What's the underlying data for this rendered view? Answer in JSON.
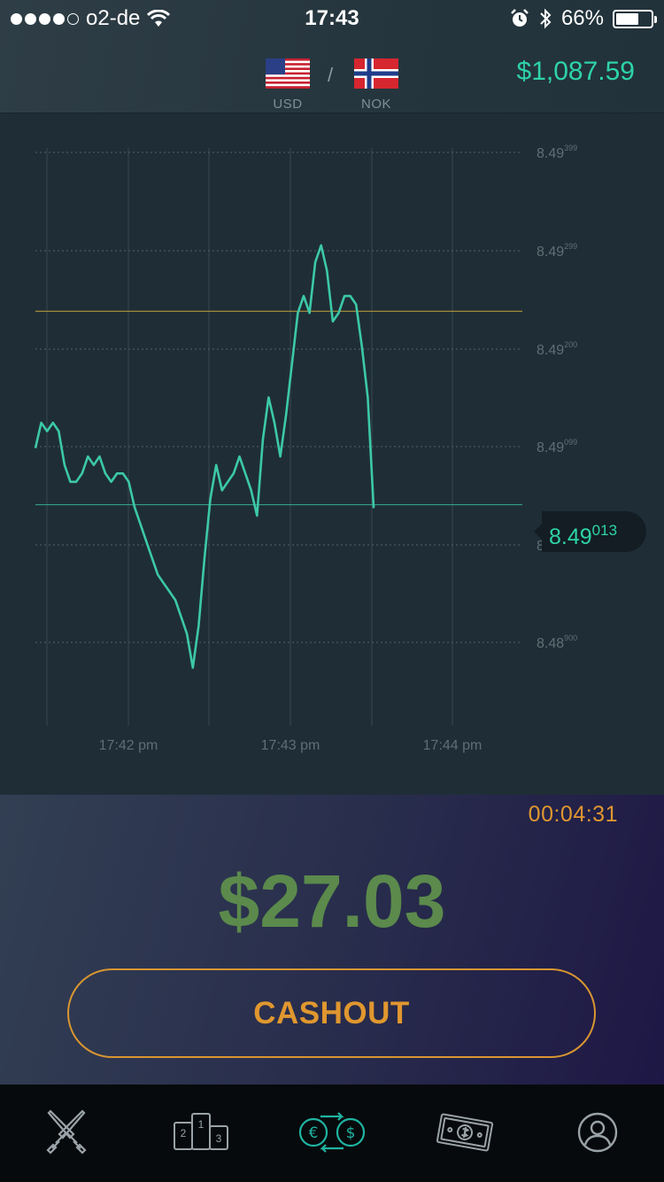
{
  "status_bar": {
    "carrier": "o2-de",
    "time": "17:43",
    "battery_pct": "66%",
    "battery_level": 0.66,
    "signal_bars": 4
  },
  "pair": {
    "base": "USD",
    "separator": "/",
    "quote": "NOK"
  },
  "balance": "$1,087.59",
  "chart": {
    "y_ticks": [
      {
        "main": "8.49",
        "sup": "399"
      },
      {
        "main": "8.49",
        "sup": "299"
      },
      {
        "main": "8.49",
        "sup": "200"
      },
      {
        "main": "8.49",
        "sup": "099"
      },
      {
        "main": "8.49",
        "sup": ""
      },
      {
        "main": "8.48",
        "sup": "900"
      }
    ],
    "x_ticks": [
      "17:42 pm",
      "17:43 pm",
      "17:44 pm"
    ],
    "current_price": {
      "main": "8.49",
      "sup": "013"
    },
    "line_color": "#3cc9a8",
    "entry_line_color": "#c9a13a"
  },
  "chart_data": {
    "type": "line",
    "y_range": [
      8.4885,
      8.4943
    ],
    "entry_level": 8.49242,
    "current_level": 8.49013,
    "points": [
      [
        0,
        8.4908
      ],
      [
        1,
        8.4911
      ],
      [
        2,
        8.491
      ],
      [
        3,
        8.4911
      ],
      [
        4,
        8.491
      ],
      [
        5,
        8.4906
      ],
      [
        6,
        8.4904
      ],
      [
        7,
        8.4904
      ],
      [
        8,
        8.4905
      ],
      [
        9,
        8.4907
      ],
      [
        10,
        8.4906
      ],
      [
        11,
        8.4907
      ],
      [
        12,
        8.4905
      ],
      [
        13,
        8.4904
      ],
      [
        14,
        8.4905
      ],
      [
        15,
        8.4905
      ],
      [
        16,
        8.4904
      ],
      [
        17,
        8.4901
      ],
      [
        18,
        8.4899
      ],
      [
        19,
        8.4897
      ],
      [
        20,
        8.4895
      ],
      [
        21,
        8.4893
      ],
      [
        22,
        8.4892
      ],
      [
        23,
        8.4891
      ],
      [
        24,
        8.489
      ],
      [
        25,
        8.4888
      ],
      [
        26,
        8.4886
      ],
      [
        27,
        8.4882
      ],
      [
        28,
        8.4887
      ],
      [
        29,
        8.4895
      ],
      [
        30,
        8.4902
      ],
      [
        31,
        8.4906
      ],
      [
        32,
        8.4903
      ],
      [
        33,
        8.4904
      ],
      [
        34,
        8.4905
      ],
      [
        35,
        8.4907
      ],
      [
        36,
        8.4905
      ],
      [
        37,
        8.4903
      ],
      [
        38,
        8.49
      ],
      [
        39,
        8.4909
      ],
      [
        40,
        8.4914
      ],
      [
        41,
        8.4911
      ],
      [
        42,
        8.4907
      ],
      [
        43,
        8.4912
      ],
      [
        44,
        8.4918
      ],
      [
        45,
        8.4924
      ],
      [
        46,
        8.4926
      ],
      [
        47,
        8.4924
      ],
      [
        48,
        8.493
      ],
      [
        49,
        8.4932
      ],
      [
        50,
        8.4929
      ],
      [
        51,
        8.4923
      ],
      [
        52,
        8.4924
      ],
      [
        53,
        8.4926
      ],
      [
        54,
        8.4926
      ],
      [
        55,
        8.4925
      ],
      [
        56,
        8.492
      ],
      [
        57,
        8.4914
      ],
      [
        58,
        8.4901
      ]
    ]
  },
  "bet": {
    "timer": "00:04:31",
    "amount": "$27.03",
    "cashout_label": "CASHOUT"
  },
  "nav": {
    "items": [
      {
        "name": "battle",
        "icon": "crossed-swords-icon"
      },
      {
        "name": "leaderboard",
        "icon": "podium-icon",
        "labels": [
          "2",
          "1",
          "3"
        ]
      },
      {
        "name": "exchange",
        "icon": "currency-exchange-icon",
        "labels": [
          "€",
          "$"
        ]
      },
      {
        "name": "money",
        "icon": "banknote-icon"
      },
      {
        "name": "profile",
        "icon": "user-profile-icon"
      }
    ]
  }
}
